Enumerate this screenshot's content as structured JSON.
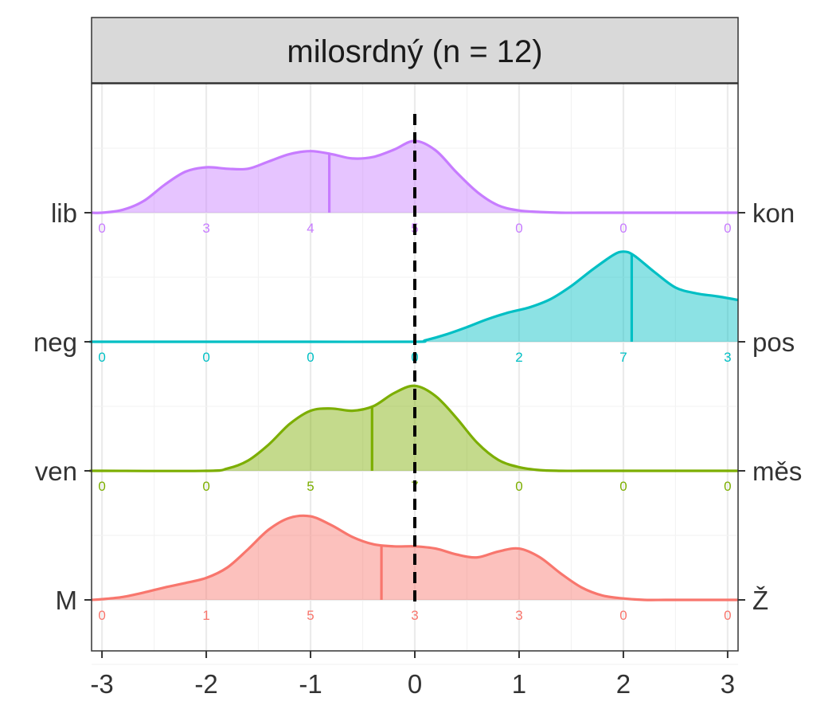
{
  "chart_data": {
    "type": "ridgeline",
    "title": "milosrdný (n = 12)",
    "xlabel": "",
    "ylabel": "",
    "xlim": [
      -3.1,
      3.1
    ],
    "x_ticks": [
      "-3",
      "-2",
      "-1",
      "0",
      "1",
      "2",
      "3"
    ],
    "x_tick_values": [
      -3,
      -2,
      -1,
      0,
      1,
      2,
      3
    ],
    "reference_line": 0,
    "grid": true,
    "count_positions": [
      -3,
      -2,
      -1,
      0,
      1,
      2,
      3
    ],
    "series": [
      {
        "left_label": "lib",
        "right_label": "kon",
        "color": "#C77CFF",
        "counts": [
          "0",
          "3",
          "4",
          "5",
          "0",
          "0",
          "0"
        ],
        "mean": -0.82,
        "density_x": [
          -3.1,
          -3.0,
          -2.8,
          -2.6,
          -2.4,
          -2.2,
          -2.0,
          -1.8,
          -1.6,
          -1.4,
          -1.2,
          -1.0,
          -0.8,
          -0.6,
          -0.4,
          -0.2,
          0.0,
          0.2,
          0.4,
          0.6,
          0.8,
          1.0,
          1.2,
          1.4,
          1.6,
          1.8,
          2.0,
          2.2,
          2.4,
          2.6,
          2.8,
          3.0,
          3.1
        ],
        "density_y": [
          0.0,
          0.0,
          0.04,
          0.16,
          0.38,
          0.56,
          0.62,
          0.6,
          0.6,
          0.7,
          0.8,
          0.84,
          0.8,
          0.74,
          0.76,
          0.86,
          0.98,
          0.85,
          0.55,
          0.28,
          0.1,
          0.03,
          0.01,
          0.0,
          0.0,
          0.0,
          0.0,
          0.0,
          0.0,
          0.0,
          0.0,
          0.0,
          0.0
        ]
      },
      {
        "left_label": "neg",
        "right_label": "pos",
        "color": "#00BFC4",
        "counts": [
          "0",
          "0",
          "0",
          "0",
          "2",
          "7",
          "3"
        ],
        "mean": 2.08,
        "density_x": [
          -3.1,
          -3.0,
          -2.0,
          -1.0,
          0.0,
          0.1,
          0.3,
          0.5,
          0.7,
          0.9,
          1.1,
          1.3,
          1.5,
          1.7,
          1.9,
          2.0,
          2.1,
          2.3,
          2.5,
          2.7,
          2.9,
          3.1
        ],
        "density_y": [
          0.0,
          0.0,
          0.0,
          0.0,
          0.0,
          0.02,
          0.1,
          0.2,
          0.31,
          0.4,
          0.47,
          0.58,
          0.76,
          0.98,
          1.18,
          1.23,
          1.18,
          0.95,
          0.74,
          0.66,
          0.62,
          0.57
        ]
      },
      {
        "left_label": "ven",
        "right_label": "měs",
        "color": "#7CAE00",
        "counts": [
          "0",
          "0",
          "5",
          "7",
          "0",
          "0",
          "0"
        ],
        "mean": -0.41,
        "density_x": [
          -3.1,
          -3.0,
          -2.0,
          -1.8,
          -1.6,
          -1.4,
          -1.2,
          -1.0,
          -0.8,
          -0.6,
          -0.4,
          -0.2,
          0.0,
          0.2,
          0.4,
          0.6,
          0.8,
          1.0,
          1.2,
          1.4,
          1.6,
          2.0,
          3.1
        ],
        "density_y": [
          0.0,
          0.0,
          0.0,
          0.03,
          0.14,
          0.36,
          0.64,
          0.82,
          0.85,
          0.82,
          0.88,
          1.06,
          1.16,
          1.02,
          0.72,
          0.38,
          0.15,
          0.05,
          0.01,
          0.0,
          0.0,
          0.0,
          0.0
        ]
      },
      {
        "left_label": "M",
        "right_label": "Ž",
        "color": "#F8766D",
        "counts": [
          "0",
          "1",
          "5",
          "3",
          "3",
          "0",
          "0"
        ],
        "mean": -0.32,
        "density_x": [
          -3.1,
          -3.0,
          -2.8,
          -2.6,
          -2.4,
          -2.2,
          -2.0,
          -1.8,
          -1.6,
          -1.4,
          -1.2,
          -1.0,
          -0.8,
          -0.6,
          -0.4,
          -0.2,
          0.0,
          0.2,
          0.4,
          0.6,
          0.8,
          1.0,
          1.2,
          1.4,
          1.6,
          1.8,
          2.0,
          2.2,
          2.4,
          2.6,
          2.8,
          3.0,
          3.1
        ],
        "density_y": [
          0.0,
          0.01,
          0.04,
          0.1,
          0.17,
          0.23,
          0.3,
          0.44,
          0.69,
          0.96,
          1.12,
          1.14,
          1.02,
          0.86,
          0.76,
          0.73,
          0.73,
          0.7,
          0.62,
          0.58,
          0.66,
          0.7,
          0.58,
          0.36,
          0.17,
          0.06,
          0.02,
          0.0,
          0.0,
          0.0,
          0.0,
          0.0,
          0.0
        ]
      }
    ]
  }
}
